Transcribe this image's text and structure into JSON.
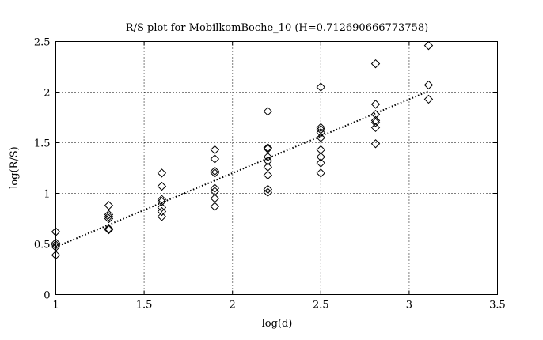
{
  "chart_data": {
    "type": "scatter",
    "title": "R/S plot for MobilkomBoche_10 (H=0.712690666773758)",
    "xlabel": "log(d)",
    "ylabel": "log(R/S)",
    "xlim": [
      1,
      3.5
    ],
    "ylim": [
      0,
      2.5
    ],
    "xticks": [
      "1",
      "1.5",
      "2",
      "2.5",
      "3",
      "3.5"
    ],
    "yticks": [
      "0",
      "0.5",
      "1",
      "1.5",
      "2",
      "2.5"
    ],
    "xtick_values": [
      1,
      1.5,
      2,
      2.5,
      3,
      3.5
    ],
    "ytick_values": [
      0,
      0.5,
      1,
      1.5,
      2,
      2.5
    ],
    "grid": true,
    "marker": "diamond",
    "points": [
      {
        "x": 1.0,
        "y": 0.62
      },
      {
        "x": 1.0,
        "y": 0.51
      },
      {
        "x": 1.0,
        "y": 0.49
      },
      {
        "x": 1.0,
        "y": 0.47
      },
      {
        "x": 1.0,
        "y": 0.39
      },
      {
        "x": 1.3,
        "y": 0.88
      },
      {
        "x": 1.3,
        "y": 0.79
      },
      {
        "x": 1.3,
        "y": 0.77
      },
      {
        "x": 1.3,
        "y": 0.75
      },
      {
        "x": 1.3,
        "y": 0.65
      },
      {
        "x": 1.3,
        "y": 0.64
      },
      {
        "x": 1.6,
        "y": 1.2
      },
      {
        "x": 1.6,
        "y": 1.07
      },
      {
        "x": 1.6,
        "y": 0.94
      },
      {
        "x": 1.6,
        "y": 0.92
      },
      {
        "x": 1.6,
        "y": 0.86
      },
      {
        "x": 1.6,
        "y": 0.82
      },
      {
        "x": 1.6,
        "y": 0.77
      },
      {
        "x": 1.9,
        "y": 1.43
      },
      {
        "x": 1.9,
        "y": 1.34
      },
      {
        "x": 1.9,
        "y": 1.22
      },
      {
        "x": 1.9,
        "y": 1.2
      },
      {
        "x": 1.9,
        "y": 1.05
      },
      {
        "x": 1.9,
        "y": 1.02
      },
      {
        "x": 1.9,
        "y": 0.95
      },
      {
        "x": 1.9,
        "y": 0.87
      },
      {
        "x": 2.2,
        "y": 1.81
      },
      {
        "x": 2.2,
        "y": 1.45
      },
      {
        "x": 2.2,
        "y": 1.44
      },
      {
        "x": 2.2,
        "y": 1.36
      },
      {
        "x": 2.2,
        "y": 1.32
      },
      {
        "x": 2.2,
        "y": 1.26
      },
      {
        "x": 2.2,
        "y": 1.18
      },
      {
        "x": 2.2,
        "y": 1.04
      },
      {
        "x": 2.2,
        "y": 1.01
      },
      {
        "x": 2.5,
        "y": 2.05
      },
      {
        "x": 2.5,
        "y": 1.65
      },
      {
        "x": 2.5,
        "y": 1.63
      },
      {
        "x": 2.5,
        "y": 1.6
      },
      {
        "x": 2.5,
        "y": 1.55
      },
      {
        "x": 2.5,
        "y": 1.43
      },
      {
        "x": 2.5,
        "y": 1.36
      },
      {
        "x": 2.5,
        "y": 1.3
      },
      {
        "x": 2.5,
        "y": 1.2
      },
      {
        "x": 2.81,
        "y": 2.28
      },
      {
        "x": 2.81,
        "y": 1.88
      },
      {
        "x": 2.81,
        "y": 1.78
      },
      {
        "x": 2.81,
        "y": 1.72
      },
      {
        "x": 2.81,
        "y": 1.7
      },
      {
        "x": 2.81,
        "y": 1.65
      },
      {
        "x": 2.81,
        "y": 1.49
      },
      {
        "x": 3.11,
        "y": 2.46
      },
      {
        "x": 3.11,
        "y": 2.07
      },
      {
        "x": 3.11,
        "y": 1.93
      }
    ],
    "fit_line": {
      "x": [
        1.0,
        3.11
      ],
      "y": [
        0.47,
        2.01
      ]
    }
  }
}
